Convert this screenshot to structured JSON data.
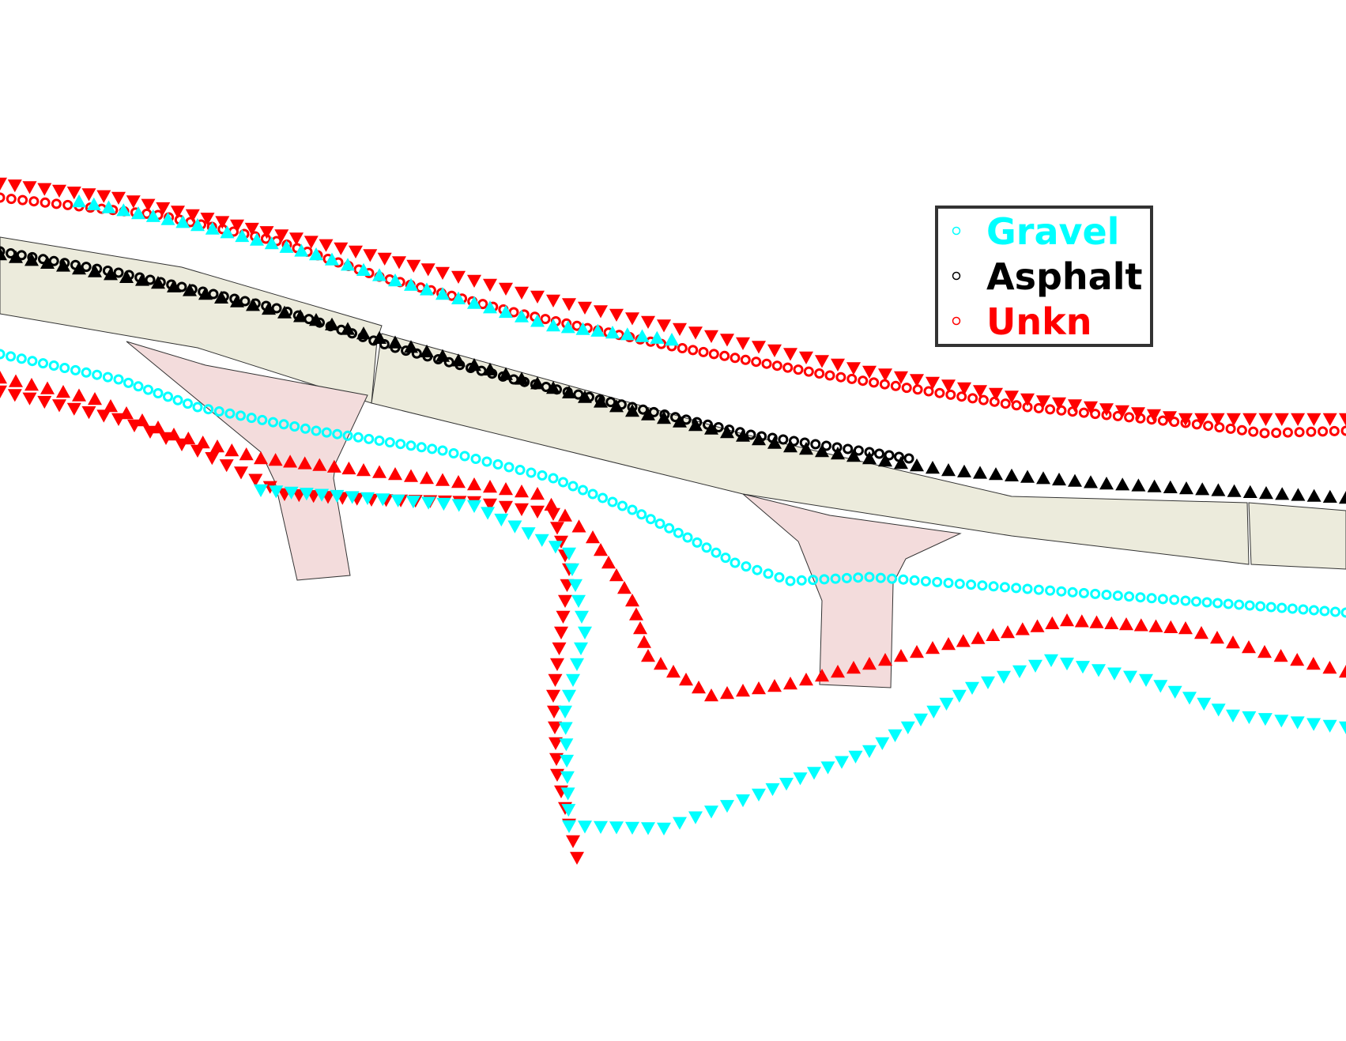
{
  "legend": {
    "items": [
      {
        "label": "Gravel",
        "color": "#00ffff",
        "marker": "circle-icon"
      },
      {
        "label": "Asphalt",
        "color": "#000000",
        "marker": "circle-icon"
      },
      {
        "label": "Unkn",
        "color": "#ff0000",
        "marker": "circle-icon"
      }
    ]
  },
  "colors": {
    "road_fill": "#ecebdc",
    "ramp_fill": "#f3dcdc",
    "outline": "#333333",
    "background": "#ffffff"
  },
  "trajectories": [
    {
      "name": "upper-road-circles",
      "surface": "Unkn",
      "marker": "circle"
    },
    {
      "name": "upper-road-down-triangles",
      "surface": "Unkn",
      "marker": "triangle-down"
    },
    {
      "name": "upper-road-up-triangles",
      "surface": "Gravel",
      "marker": "triangle-up"
    },
    {
      "name": "mid-road-circles",
      "surface": "Asphalt",
      "marker": "circle"
    },
    {
      "name": "mid-road-triangles",
      "surface": "Asphalt",
      "marker": "triangle-up"
    },
    {
      "name": "lower-circles",
      "surface": "Gravel",
      "marker": "circle"
    },
    {
      "name": "lower-up-triangles",
      "surface": "Unkn",
      "marker": "triangle-up"
    },
    {
      "name": "lower-down-triangles",
      "surface": "Unkn",
      "marker": "triangle-down"
    },
    {
      "name": "loop-down-triangles",
      "surface": "Gravel",
      "marker": "triangle-down"
    }
  ]
}
